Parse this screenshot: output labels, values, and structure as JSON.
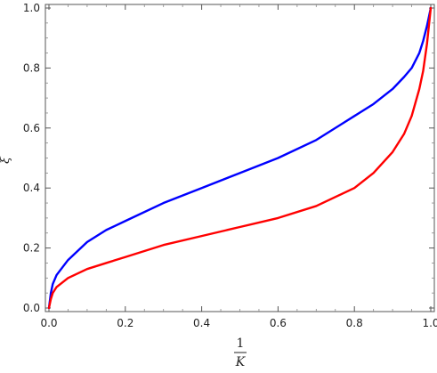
{
  "chart_data": {
    "type": "line",
    "title": "",
    "xlabel_numerator": "1",
    "xlabel_denominator": "K",
    "ylabel": "ξ",
    "xlim": [
      0,
      1
    ],
    "ylim": [
      0,
      1
    ],
    "grid": false,
    "x_ticks": [
      "0.0",
      "0.2",
      "0.4",
      "0.6",
      "0.8",
      "1.0"
    ],
    "y_ticks": [
      "0.0",
      "0.2",
      "0.4",
      "0.6",
      "0.8",
      "1.0"
    ],
    "series": [
      {
        "color": "#0000ff",
        "x": [
          0.0,
          0.005,
          0.01,
          0.02,
          0.05,
          0.1,
          0.15,
          0.2,
          0.3,
          0.4,
          0.5,
          0.6,
          0.7,
          0.8,
          0.85,
          0.9,
          0.93,
          0.95,
          0.97,
          0.98,
          0.99,
          0.995,
          1.0
        ],
        "y": [
          0.0,
          0.05,
          0.08,
          0.11,
          0.16,
          0.22,
          0.26,
          0.29,
          0.35,
          0.4,
          0.45,
          0.5,
          0.56,
          0.64,
          0.68,
          0.73,
          0.77,
          0.8,
          0.85,
          0.89,
          0.94,
          0.97,
          1.0
        ]
      },
      {
        "color": "#ff0000",
        "x": [
          0.0,
          0.005,
          0.01,
          0.02,
          0.05,
          0.1,
          0.15,
          0.2,
          0.3,
          0.4,
          0.5,
          0.6,
          0.7,
          0.8,
          0.85,
          0.9,
          0.93,
          0.95,
          0.97,
          0.98,
          0.99,
          0.995,
          1.0
        ],
        "y": [
          0.0,
          0.03,
          0.05,
          0.07,
          0.1,
          0.13,
          0.15,
          0.17,
          0.21,
          0.24,
          0.27,
          0.3,
          0.34,
          0.4,
          0.45,
          0.52,
          0.58,
          0.64,
          0.73,
          0.79,
          0.88,
          0.94,
          1.0
        ]
      }
    ]
  }
}
